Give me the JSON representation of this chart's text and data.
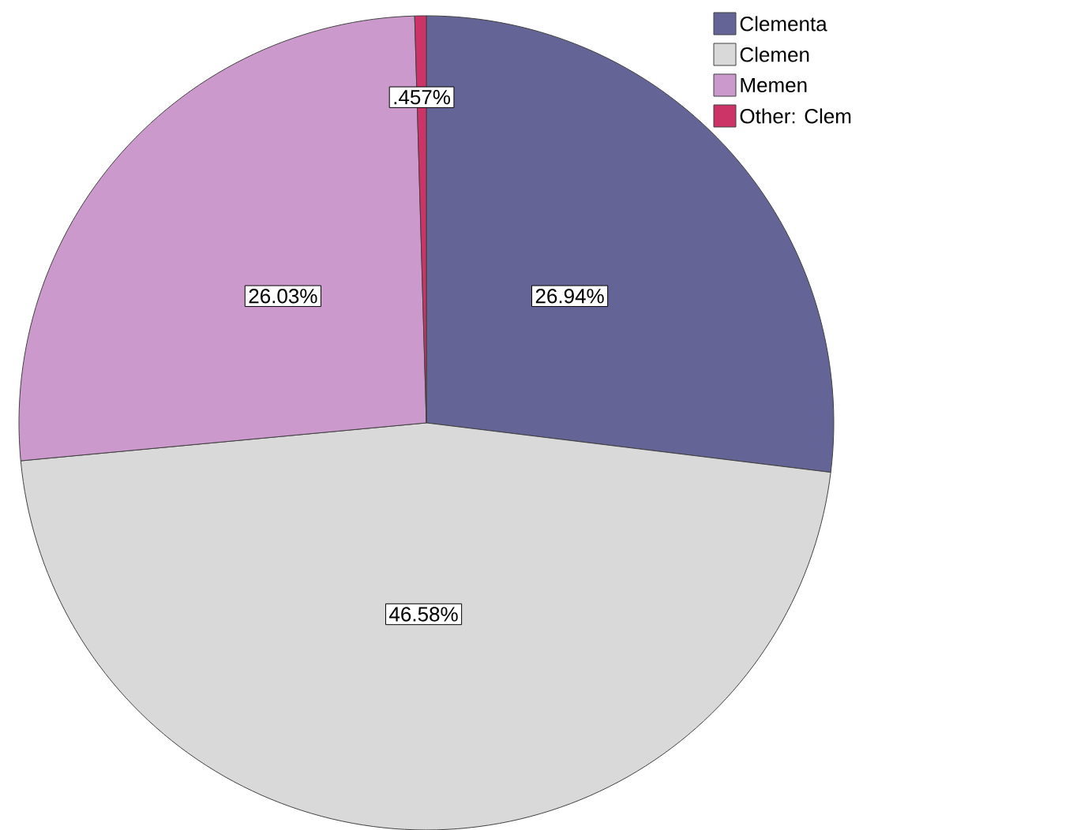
{
  "chart_data": {
    "type": "pie",
    "categories": [
      "Clementa",
      "Clemen",
      "Memen",
      "Other: Clem"
    ],
    "values": [
      26.94,
      46.58,
      26.03,
      0.457
    ],
    "colors": [
      "#646497",
      "#d9d9d9",
      "#cc99cc",
      "#cc3366"
    ],
    "value_labels": [
      "26.94%",
      "46.58%",
      "26.03%",
      ".457%"
    ],
    "legend": "top right"
  }
}
